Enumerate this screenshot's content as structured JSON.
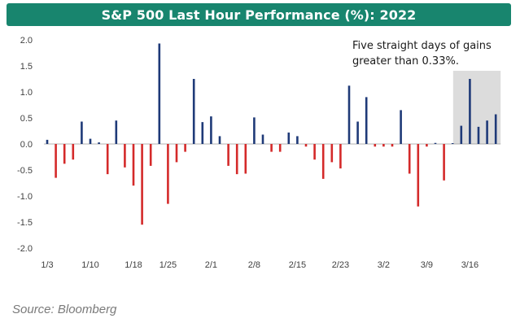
{
  "chart_data": {
    "type": "bar",
    "title": "S&P 500 Last Hour Performance (%): 2022",
    "xlabel": "",
    "ylabel": "",
    "ylim": [
      -2.0,
      2.0
    ],
    "yticks": [
      "2.0",
      "1.5",
      "1.0",
      "0.5",
      "0.0",
      "-0.5",
      "-1.0",
      "-1.5",
      "-2.0"
    ],
    "ytick_values": [
      2.0,
      1.5,
      1.0,
      0.5,
      0.0,
      -0.5,
      -1.0,
      -1.5,
      -2.0
    ],
    "xtick_labels": [
      "1/3",
      "1/10",
      "1/18",
      "1/25",
      "2/1",
      "2/8",
      "2/15",
      "2/23",
      "3/2",
      "3/9",
      "3/16"
    ],
    "xtick_indices": [
      0,
      5,
      10,
      14,
      19,
      24,
      29,
      34,
      39,
      44,
      49
    ],
    "values": [
      0.08,
      -0.65,
      -0.38,
      -0.3,
      0.43,
      0.1,
      0.03,
      -0.58,
      0.45,
      -0.45,
      -0.8,
      -1.55,
      -0.42,
      1.93,
      -1.15,
      -0.35,
      -0.15,
      1.25,
      0.42,
      0.53,
      0.15,
      -0.42,
      -0.58,
      -0.57,
      0.51,
      0.18,
      -0.15,
      -0.15,
      0.22,
      0.15,
      -0.05,
      -0.3,
      -0.67,
      -0.35,
      -0.47,
      1.12,
      0.43,
      0.9,
      -0.05,
      -0.05,
      -0.05,
      0.65,
      -0.57,
      -1.2,
      -0.05,
      0.02,
      -0.7,
      0.01,
      0.35,
      1.25,
      0.33,
      0.45,
      0.57
    ],
    "highlight_start_index": 48,
    "highlight_end_index": 52,
    "annotation": [
      "Five straight days of gains",
      "greater than 0.33%."
    ],
    "colors": {
      "positive": "#1f3a78",
      "negative": "#d42a2a",
      "highlight": "#dcdcdc",
      "title_bg": "#18856e"
    }
  },
  "source": "Source: Bloomberg"
}
